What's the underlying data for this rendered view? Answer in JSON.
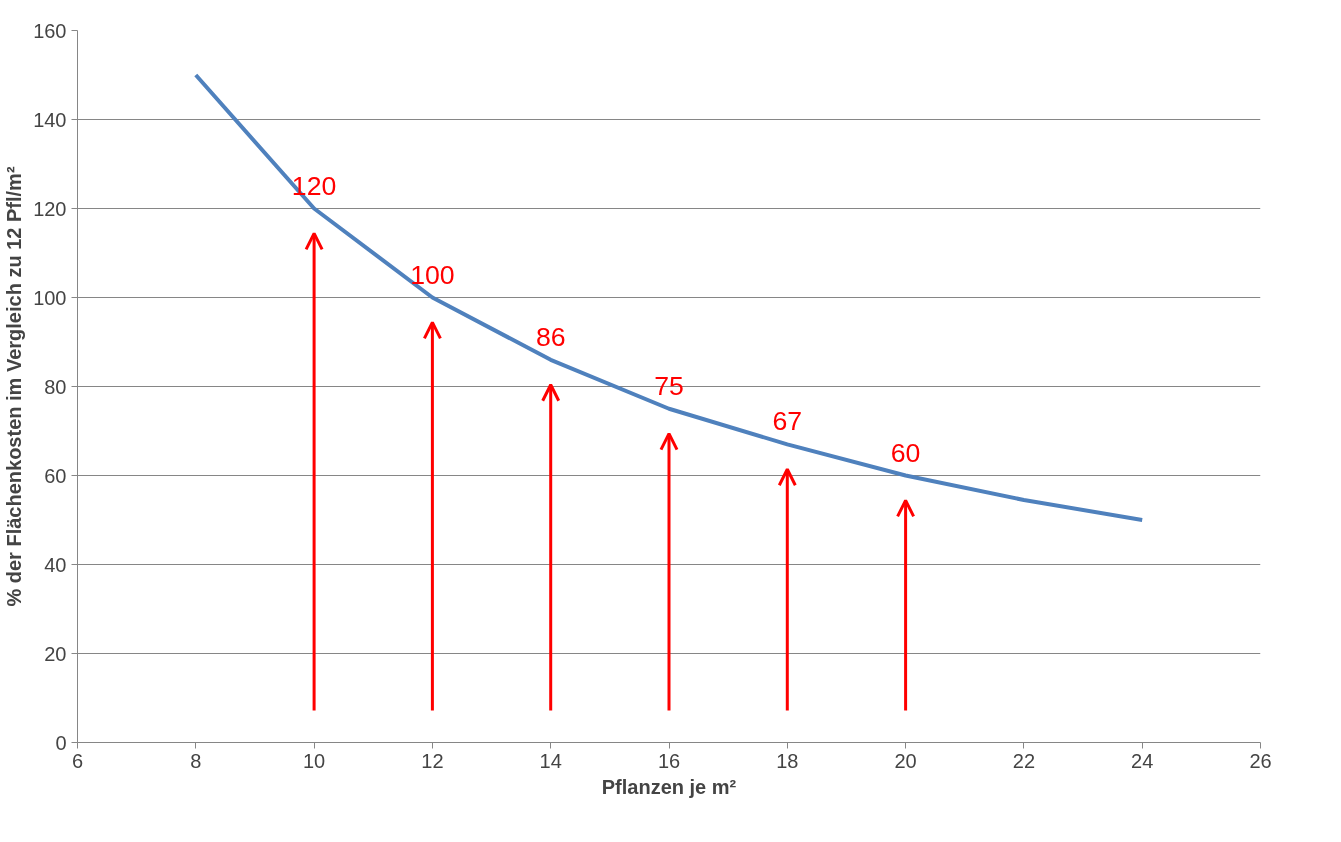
{
  "chart_data": {
    "type": "line",
    "xlabel": "Pflanzen je m²",
    "ylabel": "% der Flächenkosten im Vergleich zu 12 Pfl/m²",
    "x": [
      8,
      10,
      12,
      14,
      16,
      18,
      20,
      22,
      24
    ],
    "series": [
      {
        "color": "#4f81bd",
        "values": [
          150,
          120,
          100,
          86,
          75,
          67,
          60,
          54.5,
          50
        ],
        "value_labels": [
          null,
          "120",
          "100",
          "86",
          "75",
          "67",
          "60",
          null,
          null
        ]
      }
    ],
    "xlim": [
      6,
      26
    ],
    "xticks": [
      6,
      8,
      10,
      12,
      14,
      16,
      18,
      20,
      22,
      24,
      26
    ],
    "ylim": [
      0,
      160
    ],
    "yticks": [
      0,
      20,
      40,
      60,
      80,
      100,
      120,
      140,
      160
    ],
    "grid": "y",
    "marker": "none",
    "line_style": "solid"
  }
}
